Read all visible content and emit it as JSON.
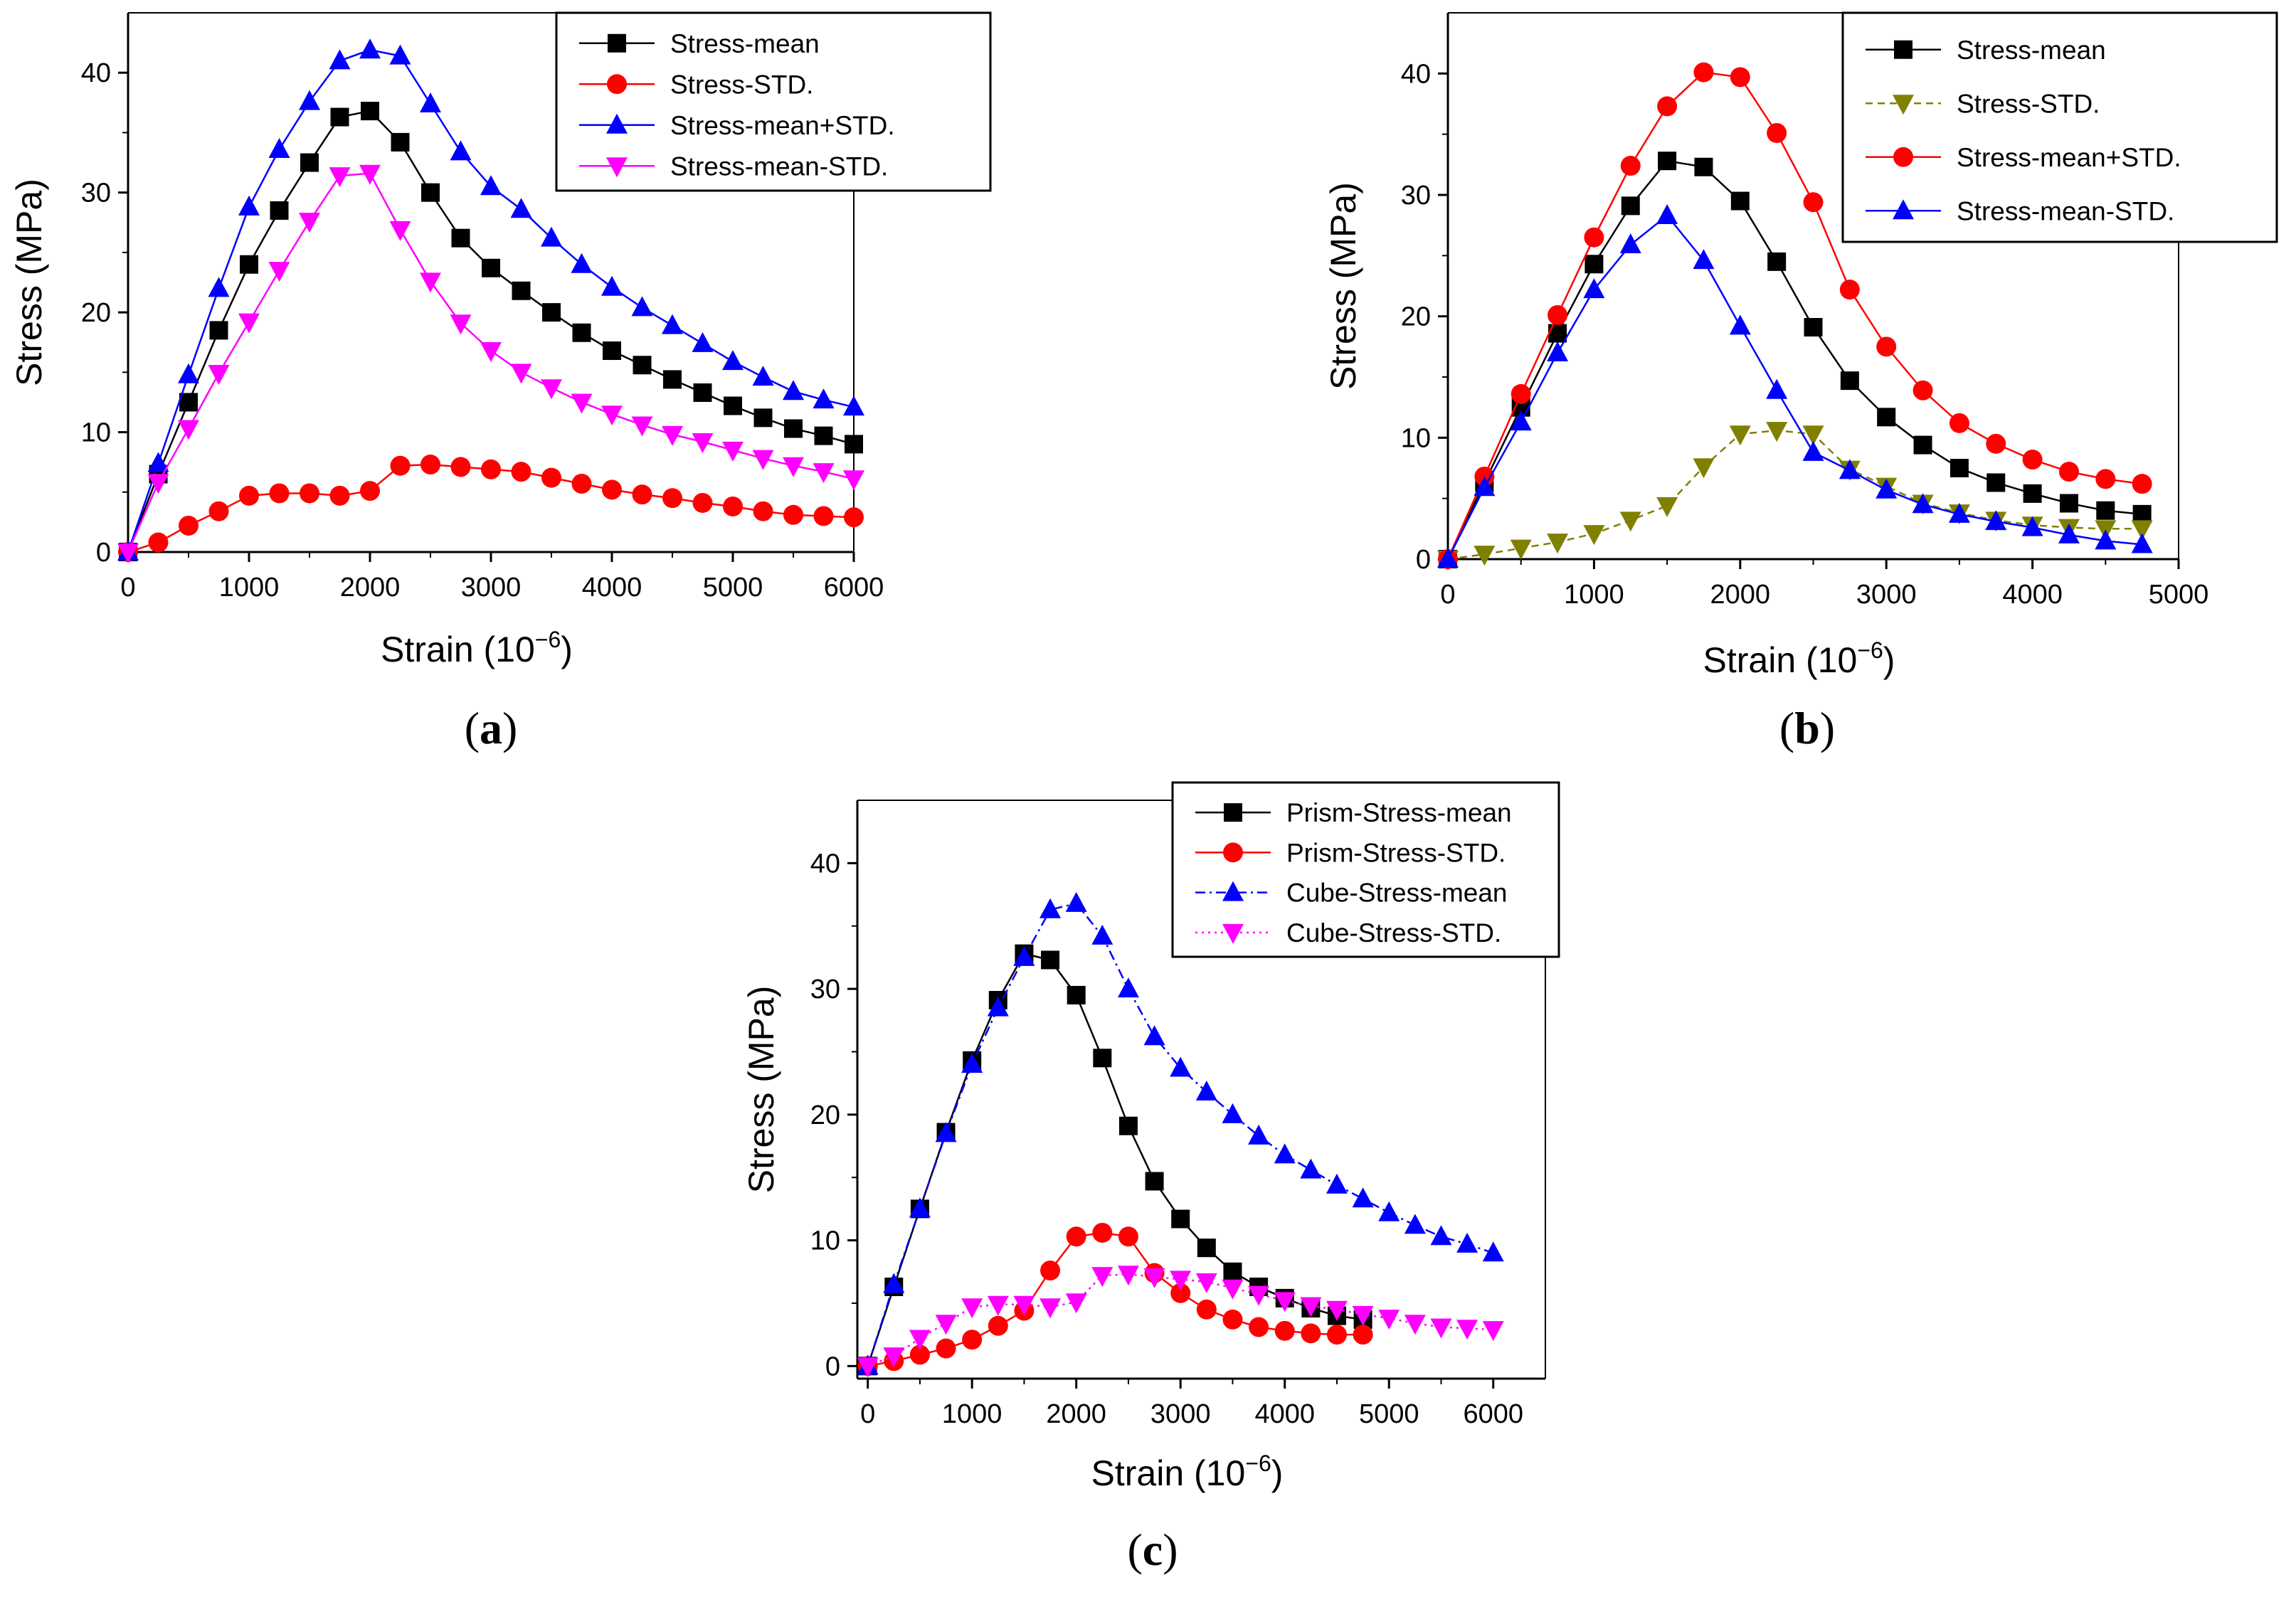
{
  "figure": {
    "background": "#ffffff"
  },
  "chart_data": [
    {
      "panel": "a",
      "panel_label": "a",
      "type": "line",
      "xlabel": "Strain (10",
      "xlabel_sup": "−6",
      "xlabel_tail": ")",
      "ylabel": "Stress (MPa)",
      "xlim": [
        0,
        6000
      ],
      "ylim": [
        0,
        45
      ],
      "xticks": [
        0,
        1000,
        2000,
        3000,
        4000,
        5000,
        6000
      ],
      "yticks": [
        0,
        10,
        20,
        30,
        40
      ],
      "legend_position": "top-right",
      "series": [
        {
          "name": "Stress-mean",
          "color": "#000000",
          "marker": "square",
          "dash": "",
          "x": [
            0,
            250,
            500,
            750,
            1000,
            1250,
            1500,
            1750,
            2000,
            2250,
            2500,
            2750,
            3000,
            3250,
            3500,
            3750,
            4000,
            4250,
            4500,
            4750,
            5000,
            5250,
            5500,
            5750,
            6000
          ],
          "y": [
            0,
            6.5,
            12.5,
            18.5,
            24,
            28.5,
            32.5,
            36.3,
            36.8,
            34.2,
            30,
            26.2,
            23.7,
            21.8,
            20,
            18.3,
            16.8,
            15.6,
            14.4,
            13.3,
            12.2,
            11.2,
            10.3,
            9.7,
            9.0
          ]
        },
        {
          "name": "Stress-STD.",
          "color": "#ff0000",
          "marker": "circle",
          "dash": "",
          "x": [
            0,
            250,
            500,
            750,
            1000,
            1250,
            1500,
            1750,
            2000,
            2250,
            2500,
            2750,
            3000,
            3250,
            3500,
            3750,
            4000,
            4250,
            4500,
            4750,
            5000,
            5250,
            5500,
            5750,
            6000
          ],
          "y": [
            0,
            0.8,
            2.2,
            3.4,
            4.7,
            4.9,
            4.9,
            4.7,
            5.1,
            7.2,
            7.3,
            7.1,
            6.9,
            6.7,
            6.2,
            5.7,
            5.2,
            4.8,
            4.5,
            4.1,
            3.8,
            3.4,
            3.1,
            3.0,
            2.9
          ]
        },
        {
          "name": "Stress-mean+STD.",
          "color": "#0000ff",
          "marker": "triangle-up",
          "dash": "",
          "x": [
            0,
            250,
            500,
            750,
            1000,
            1250,
            1500,
            1750,
            2000,
            2250,
            2500,
            2750,
            3000,
            3250,
            3500,
            3750,
            4000,
            4250,
            4500,
            4750,
            5000,
            5250,
            5500,
            5750,
            6000
          ],
          "y": [
            0,
            7.4,
            14.8,
            22,
            28.8,
            33.6,
            37.6,
            41,
            41.9,
            41.4,
            37.4,
            33.4,
            30.5,
            28.6,
            26.2,
            24,
            22.1,
            20.4,
            18.9,
            17.4,
            15.9,
            14.6,
            13.4,
            12.7,
            12.1
          ]
        },
        {
          "name": "Stress-mean-STD.",
          "color": "#ff00ff",
          "marker": "triangle-down",
          "dash": "",
          "x": [
            0,
            250,
            500,
            750,
            1000,
            1250,
            1500,
            1750,
            2000,
            2250,
            2500,
            2750,
            3000,
            3250,
            3500,
            3750,
            4000,
            4250,
            4500,
            4750,
            5000,
            5250,
            5500,
            5750,
            6000
          ],
          "y": [
            0,
            5.8,
            10.3,
            14.9,
            19.2,
            23.5,
            27.6,
            31.4,
            31.6,
            26.9,
            22.6,
            19.1,
            16.8,
            15,
            13.7,
            12.5,
            11.5,
            10.6,
            9.8,
            9.2,
            8.5,
            7.8,
            7.2,
            6.7,
            6.1
          ]
        }
      ]
    },
    {
      "panel": "b",
      "panel_label": "b",
      "type": "line",
      "xlabel": "Strain (10",
      "xlabel_sup": "−6",
      "xlabel_tail": ")",
      "ylabel": "Stress (MPa)",
      "xlim": [
        0,
        5000
      ],
      "ylim": [
        0,
        45
      ],
      "xticks": [
        0,
        1000,
        2000,
        3000,
        4000,
        5000
      ],
      "yticks": [
        0,
        10,
        20,
        30,
        40
      ],
      "legend_position": "top-right",
      "series": [
        {
          "name": "Stress-mean",
          "color": "#000000",
          "marker": "square",
          "dash": "",
          "x": [
            0,
            250,
            500,
            750,
            1000,
            1250,
            1500,
            1750,
            2000,
            2250,
            2500,
            2750,
            3000,
            3250,
            3500,
            3750,
            4000,
            4250,
            4500,
            4750
          ],
          "y": [
            0,
            6.3,
            12.5,
            18.6,
            24.3,
            29.1,
            32.8,
            32.3,
            29.5,
            24.5,
            19.1,
            14.7,
            11.7,
            9.4,
            7.5,
            6.3,
            5.4,
            4.6,
            4.0,
            3.7
          ]
        },
        {
          "name": "Stress-STD.",
          "color": "#808000",
          "marker": "triangle-down",
          "dash": "10,7",
          "x": [
            0,
            250,
            500,
            750,
            1000,
            1250,
            1500,
            1750,
            2000,
            2250,
            2500,
            2750,
            3000,
            3250,
            3500,
            3750,
            4000,
            4250,
            4500,
            4750
          ],
          "y": [
            0,
            0.4,
            0.9,
            1.4,
            2.1,
            3.2,
            4.4,
            7.6,
            10.3,
            10.6,
            10.3,
            7.4,
            6.0,
            4.6,
            3.8,
            3.2,
            2.8,
            2.6,
            2.5,
            2.5
          ]
        },
        {
          "name": "Stress-mean+STD.",
          "color": "#ff0000",
          "marker": "circle",
          "dash": "",
          "x": [
            0,
            250,
            500,
            750,
            1000,
            1250,
            1500,
            1750,
            2000,
            2250,
            2500,
            2750,
            3000,
            3250,
            3500,
            3750,
            4000,
            4250,
            4500,
            4750
          ],
          "y": [
            0,
            6.8,
            13.6,
            20.1,
            26.5,
            32.4,
            37.3,
            40.1,
            39.7,
            35.1,
            29.4,
            22.2,
            17.5,
            13.9,
            11.2,
            9.5,
            8.2,
            7.2,
            6.6,
            6.2
          ]
        },
        {
          "name": "Stress-mean-STD.",
          "color": "#0000ff",
          "marker": "triangle-up",
          "dash": "",
          "x": [
            0,
            250,
            500,
            750,
            1000,
            1250,
            1500,
            1750,
            2000,
            2250,
            2500,
            2750,
            3000,
            3250,
            3500,
            3750,
            4000,
            4250,
            4500,
            4750
          ],
          "y": [
            0,
            5.9,
            11.3,
            17,
            22.2,
            25.9,
            28.3,
            24.6,
            19.2,
            13.9,
            8.8,
            7.3,
            5.7,
            4.5,
            3.7,
            3.1,
            2.6,
            2.0,
            1.5,
            1.2
          ]
        }
      ]
    },
    {
      "panel": "c",
      "panel_label": "c",
      "type": "line",
      "xlabel": "Strain (10",
      "xlabel_sup": "−6",
      "xlabel_tail": ")",
      "ylabel": "Stress (MPa)",
      "xlim": [
        -100,
        6500
      ],
      "ylim": [
        -1,
        45
      ],
      "xticks": [
        0,
        1000,
        2000,
        3000,
        4000,
        5000,
        6000
      ],
      "yticks": [
        0,
        10,
        20,
        30,
        40
      ],
      "legend_position": "top-right",
      "series": [
        {
          "name": "Prism-Stress-mean",
          "color": "#000000",
          "marker": "square",
          "dash": "",
          "x": [
            0,
            250,
            500,
            750,
            1000,
            1250,
            1500,
            1750,
            2000,
            2250,
            2500,
            2750,
            3000,
            3250,
            3500,
            3750,
            4000,
            4250,
            4500,
            4750
          ],
          "y": [
            0,
            6.3,
            12.5,
            18.6,
            24.3,
            29.1,
            32.8,
            32.3,
            29.5,
            24.5,
            19.1,
            14.7,
            11.7,
            9.4,
            7.5,
            6.3,
            5.4,
            4.6,
            4.0,
            3.7
          ]
        },
        {
          "name": "Prism-Stress-STD.",
          "color": "#ff0000",
          "marker": "circle",
          "dash": "",
          "x": [
            0,
            250,
            500,
            750,
            1000,
            1250,
            1500,
            1750,
            2000,
            2250,
            2500,
            2750,
            3000,
            3250,
            3500,
            3750,
            4000,
            4250,
            4500,
            4750
          ],
          "y": [
            0,
            0.4,
            0.9,
            1.4,
            2.1,
            3.2,
            4.4,
            7.6,
            10.3,
            10.6,
            10.3,
            7.4,
            5.8,
            4.5,
            3.7,
            3.1,
            2.8,
            2.6,
            2.5,
            2.5
          ]
        },
        {
          "name": "Cube-Stress-mean",
          "color": "#0000ff",
          "marker": "triangle-up",
          "dash": "14,6,3,6",
          "x": [
            0,
            250,
            500,
            750,
            1000,
            1250,
            1500,
            1750,
            2000,
            2250,
            2500,
            2750,
            3000,
            3250,
            3500,
            3750,
            4000,
            4250,
            4500,
            4750,
            5000,
            5250,
            5500,
            5750,
            6000
          ],
          "y": [
            0,
            6.5,
            12.5,
            18.5,
            24,
            28.5,
            32.5,
            36.3,
            36.8,
            34.2,
            30,
            26.2,
            23.7,
            21.8,
            20,
            18.3,
            16.8,
            15.6,
            14.4,
            13.3,
            12.2,
            11.2,
            10.3,
            9.7,
            9.0
          ]
        },
        {
          "name": "Cube-Stress-STD.",
          "color": "#ff00ff",
          "marker": "triangle-down",
          "dash": "3,6",
          "x": [
            0,
            250,
            500,
            750,
            1000,
            1250,
            1500,
            1750,
            2000,
            2250,
            2500,
            2750,
            3000,
            3250,
            3500,
            3750,
            4000,
            4250,
            4500,
            4750,
            5000,
            5250,
            5500,
            5750,
            6000
          ],
          "y": [
            0,
            0.8,
            2.2,
            3.4,
            4.7,
            4.9,
            4.9,
            4.7,
            5.1,
            7.2,
            7.3,
            7.1,
            6.9,
            6.7,
            6.2,
            5.7,
            5.2,
            4.8,
            4.5,
            4.1,
            3.8,
            3.4,
            3.1,
            3.0,
            2.9
          ]
        }
      ]
    }
  ]
}
